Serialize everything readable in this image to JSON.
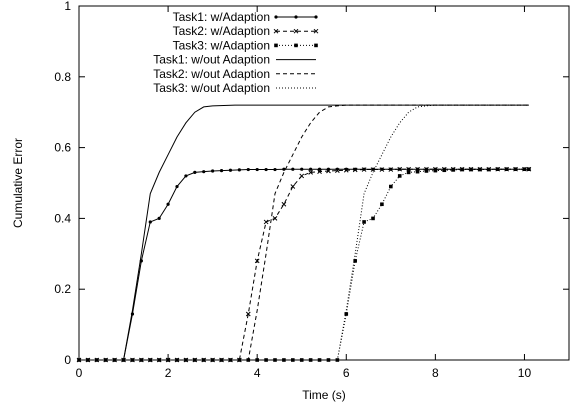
{
  "chart_data": {
    "type": "line",
    "title": "",
    "xlabel": "Time (s)",
    "ylabel": "Cumulative Error",
    "xlim": [
      0,
      11
    ],
    "ylim": [
      0,
      1
    ],
    "xticks": [
      0,
      2,
      4,
      6,
      8,
      10
    ],
    "yticks": [
      0,
      0.2,
      0.4,
      0.6,
      0.8,
      1
    ],
    "ytick_labels": [
      "0",
      "0.2",
      "0.4",
      "0.6",
      "0.8",
      "1"
    ],
    "grid": false,
    "legend_position": "top-center",
    "series": [
      {
        "name": "Task1: w/Adaption",
        "style": "solid",
        "marker": "dot",
        "x": [
          0,
          0.2,
          0.4,
          0.6,
          0.8,
          1.0,
          1.2,
          1.4,
          1.6,
          1.8,
          2.0,
          2.2,
          2.4,
          2.6,
          2.8,
          3.0,
          3.2,
          3.4,
          3.6,
          3.8,
          4.0,
          4.2,
          4.4,
          4.6,
          4.8,
          5.0,
          5.2,
          5.4,
          5.6,
          5.8,
          6.0,
          6.2,
          6.4,
          6.6,
          6.8,
          7.0,
          7.2,
          7.4,
          7.6,
          7.8,
          8.0,
          8.2,
          8.4,
          8.6,
          8.8,
          9.0,
          9.2,
          9.4,
          9.6,
          9.8,
          10.0,
          10.1
        ],
        "y": [
          0,
          0,
          0,
          0,
          0,
          0,
          0.13,
          0.28,
          0.39,
          0.4,
          0.44,
          0.49,
          0.52,
          0.53,
          0.532,
          0.534,
          0.535,
          0.536,
          0.537,
          0.538,
          0.538,
          0.538,
          0.538,
          0.539,
          0.539,
          0.539,
          0.539,
          0.539,
          0.539,
          0.539,
          0.539,
          0.539,
          0.539,
          0.539,
          0.539,
          0.539,
          0.539,
          0.539,
          0.539,
          0.539,
          0.539,
          0.539,
          0.539,
          0.539,
          0.539,
          0.539,
          0.539,
          0.539,
          0.539,
          0.539,
          0.539,
          0.539
        ]
      },
      {
        "name": "Task2: w/Adaption",
        "style": "dashed",
        "marker": "cross",
        "x": [
          0,
          0.2,
          0.4,
          0.6,
          0.8,
          1.0,
          1.2,
          1.4,
          1.6,
          1.8,
          2.0,
          2.2,
          2.4,
          2.6,
          2.8,
          3.0,
          3.2,
          3.4,
          3.6,
          3.8,
          4.0,
          4.2,
          4.4,
          4.6,
          4.8,
          5.0,
          5.2,
          5.4,
          5.6,
          5.8,
          6.0,
          6.2,
          6.4,
          6.6,
          6.8,
          7.0,
          7.2,
          7.4,
          7.6,
          7.8,
          8.0,
          8.2,
          8.4,
          8.6,
          8.8,
          9.0,
          9.2,
          9.4,
          9.6,
          9.8,
          10.0,
          10.1
        ],
        "y": [
          0,
          0,
          0,
          0,
          0,
          0,
          0,
          0,
          0,
          0,
          0,
          0,
          0,
          0,
          0,
          0,
          0,
          0,
          0,
          0.13,
          0.28,
          0.39,
          0.4,
          0.44,
          0.49,
          0.52,
          0.53,
          0.532,
          0.534,
          0.535,
          0.536,
          0.537,
          0.538,
          0.538,
          0.538,
          0.538,
          0.539,
          0.539,
          0.539,
          0.539,
          0.539,
          0.539,
          0.539,
          0.539,
          0.539,
          0.539,
          0.539,
          0.539,
          0.539,
          0.539,
          0.539,
          0.539
        ]
      },
      {
        "name": "Task3: w/Adaption",
        "style": "dotted",
        "marker": "square",
        "x": [
          0,
          0.2,
          0.4,
          0.6,
          0.8,
          1.0,
          1.2,
          1.4,
          1.6,
          1.8,
          2.0,
          2.2,
          2.4,
          2.6,
          2.8,
          3.0,
          3.2,
          3.4,
          3.6,
          3.8,
          4.0,
          4.2,
          4.4,
          4.6,
          4.8,
          5.0,
          5.2,
          5.4,
          5.6,
          5.8,
          6.0,
          6.2,
          6.4,
          6.6,
          6.8,
          7.0,
          7.2,
          7.4,
          7.6,
          7.8,
          8.0,
          8.2,
          8.4,
          8.6,
          8.8,
          9.0,
          9.2,
          9.4,
          9.6,
          9.8,
          10.0,
          10.1
        ],
        "y": [
          0,
          0,
          0,
          0,
          0,
          0,
          0,
          0,
          0,
          0,
          0,
          0,
          0,
          0,
          0,
          0,
          0,
          0,
          0,
          0,
          0,
          0,
          0,
          0,
          0,
          0,
          0,
          0,
          0,
          0,
          0.13,
          0.28,
          0.39,
          0.4,
          0.44,
          0.49,
          0.52,
          0.53,
          0.532,
          0.534,
          0.535,
          0.536,
          0.537,
          0.538,
          0.538,
          0.538,
          0.538,
          0.539,
          0.539,
          0.539,
          0.539,
          0.539
        ]
      },
      {
        "name": "Task1: w/out Adaption",
        "style": "solid",
        "marker": "none",
        "x": [
          0,
          1.0,
          1.2,
          1.4,
          1.6,
          1.8,
          2.0,
          2.2,
          2.4,
          2.6,
          2.8,
          3.0,
          3.5,
          4.0,
          5.0,
          6.0,
          7.0,
          8.0,
          9.0,
          10.0,
          10.1
        ],
        "y": [
          0,
          0,
          0.14,
          0.3,
          0.47,
          0.53,
          0.58,
          0.63,
          0.67,
          0.7,
          0.715,
          0.718,
          0.72,
          0.72,
          0.72,
          0.72,
          0.72,
          0.72,
          0.72,
          0.72,
          0.72
        ]
      },
      {
        "name": "Task2: w/out Adaption",
        "style": "dashed",
        "marker": "none",
        "x": [
          0,
          3.8,
          4.0,
          4.2,
          4.4,
          4.6,
          4.8,
          5.0,
          5.2,
          5.4,
          5.6,
          5.8,
          6.0,
          6.5,
          7.0,
          8.0,
          9.0,
          10.0,
          10.1
        ],
        "y": [
          0,
          0,
          0.14,
          0.3,
          0.47,
          0.53,
          0.58,
          0.63,
          0.67,
          0.7,
          0.715,
          0.718,
          0.72,
          0.72,
          0.72,
          0.72,
          0.72,
          0.72,
          0.72
        ]
      },
      {
        "name": "Task3: w/out Adaption",
        "style": "dotted",
        "marker": "none",
        "x": [
          0,
          5.8,
          6.0,
          6.2,
          6.4,
          6.6,
          6.8,
          7.0,
          7.2,
          7.4,
          7.6,
          7.8,
          8.0,
          8.5,
          9.0,
          10.0,
          10.1
        ],
        "y": [
          0,
          0,
          0.14,
          0.3,
          0.47,
          0.53,
          0.58,
          0.63,
          0.67,
          0.7,
          0.715,
          0.718,
          0.72,
          0.72,
          0.72,
          0.72,
          0.72
        ]
      }
    ]
  }
}
